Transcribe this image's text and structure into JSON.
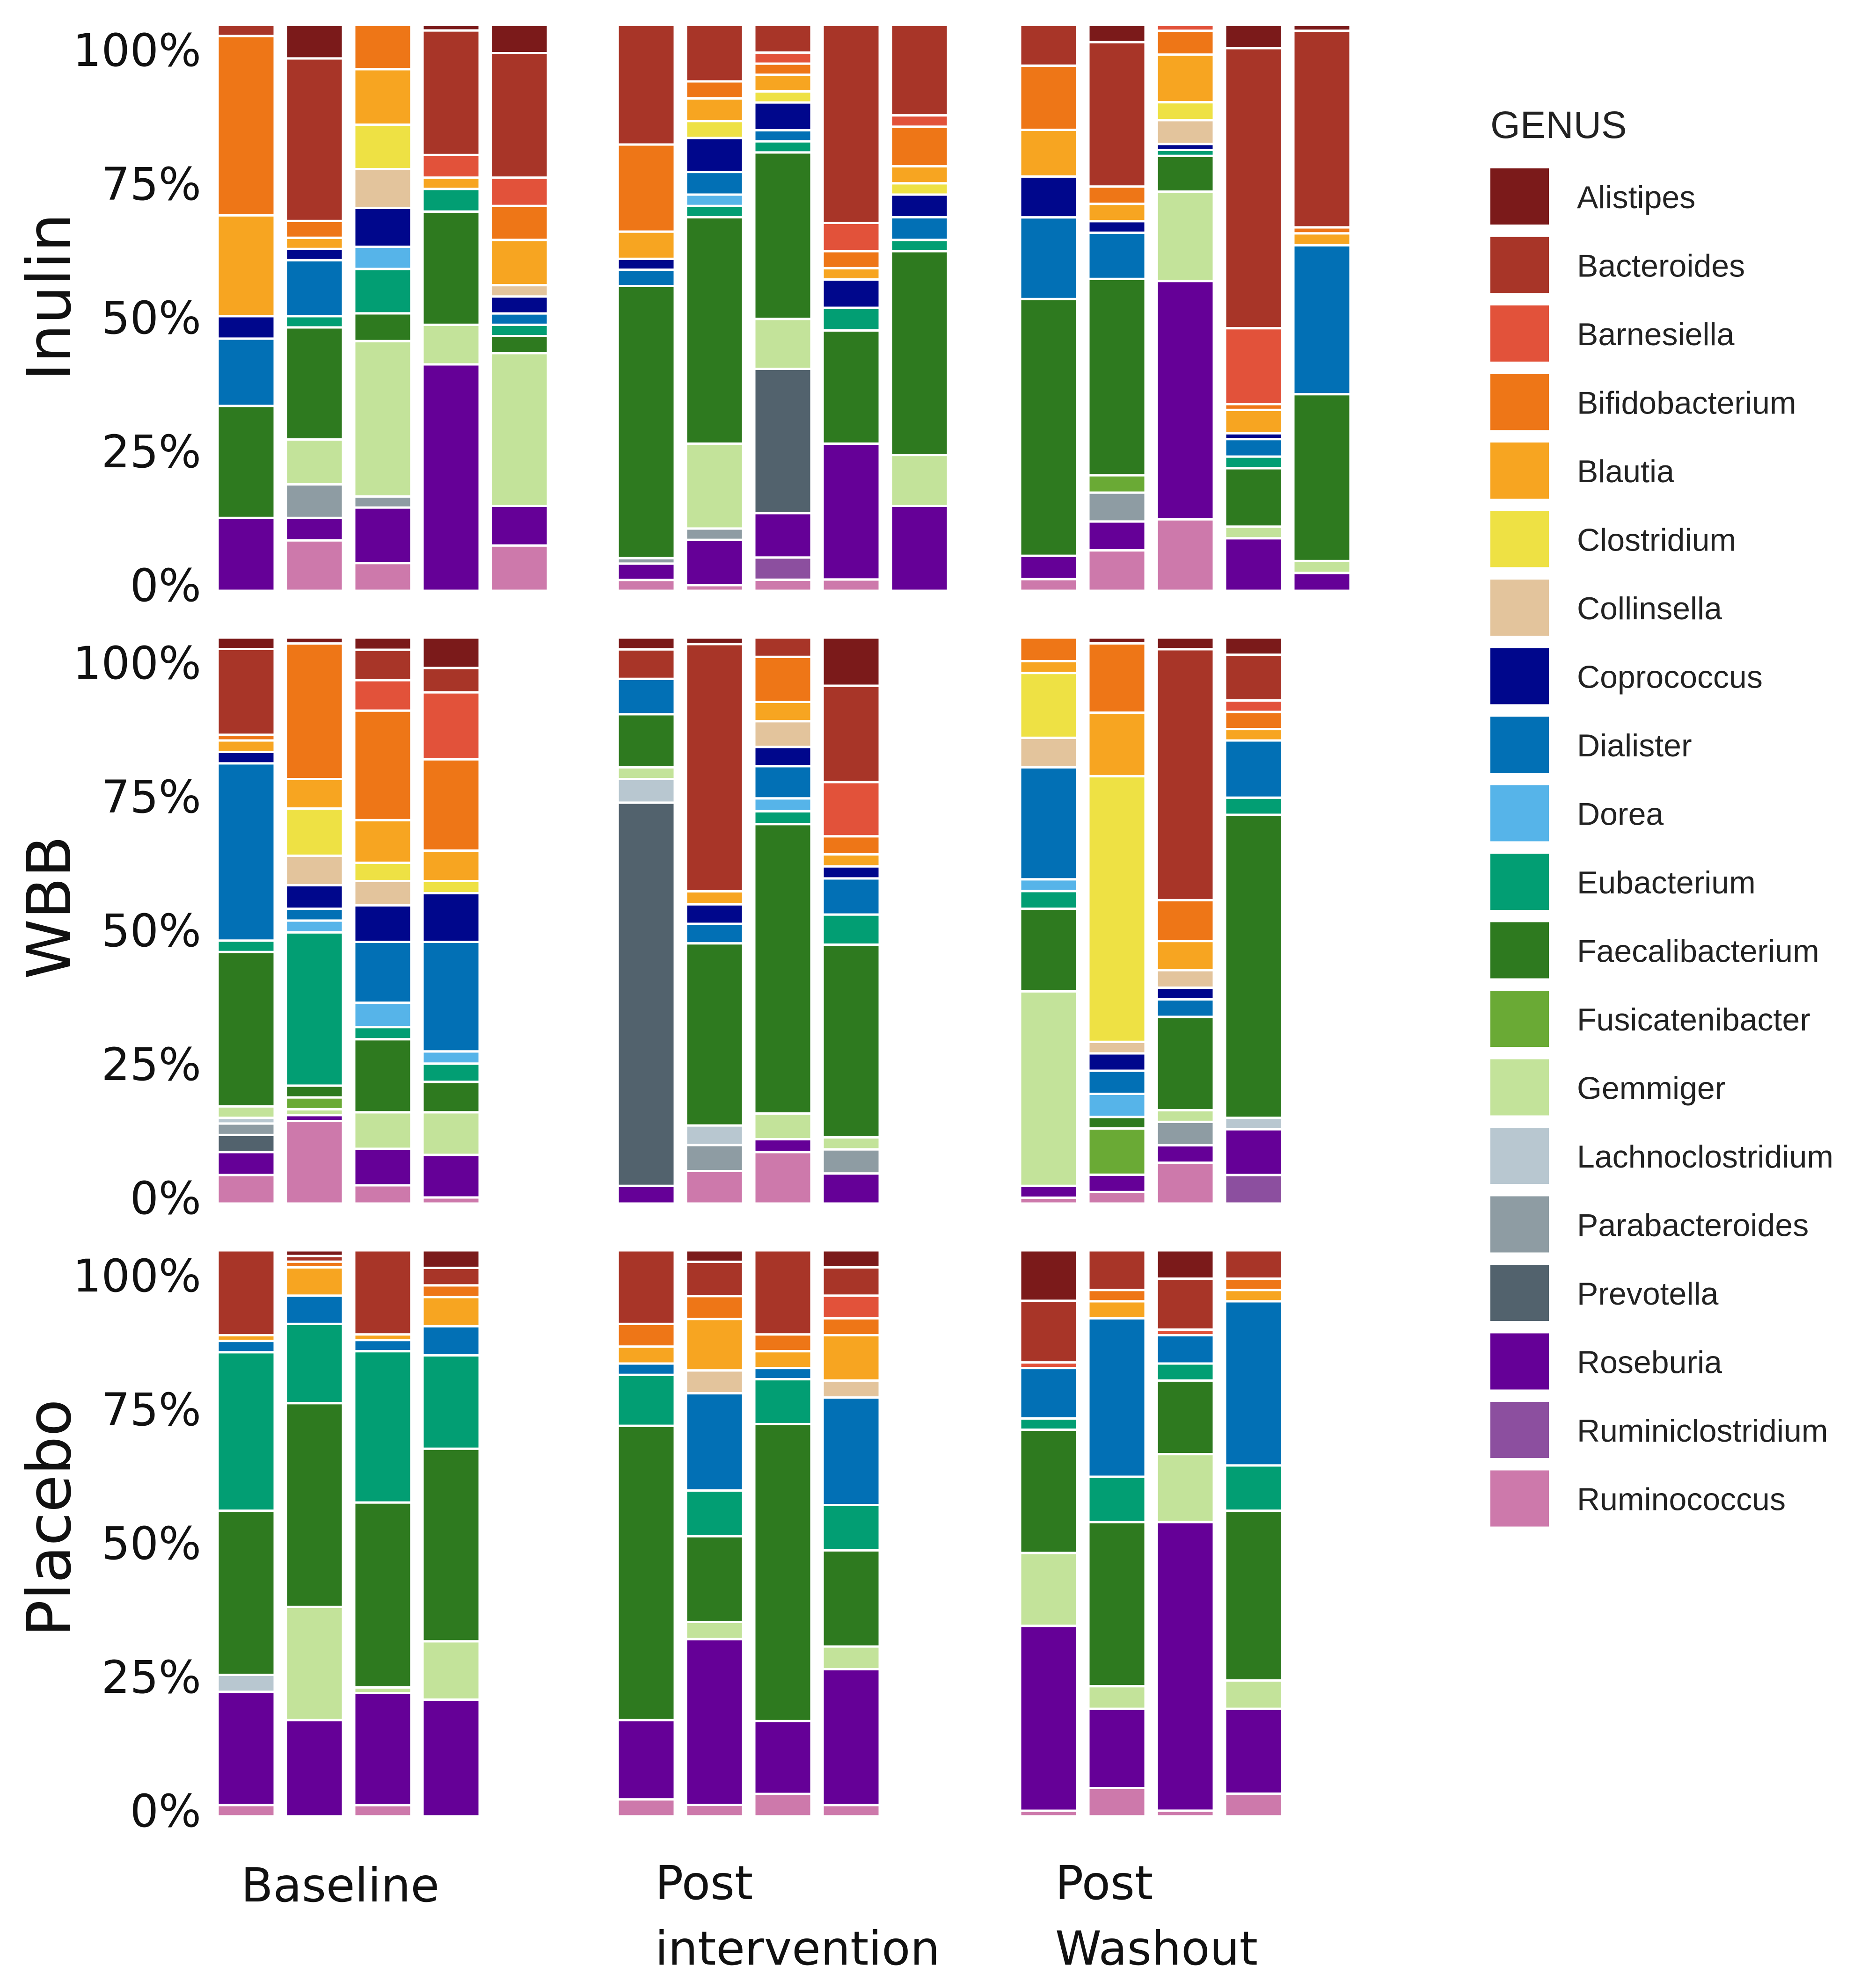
{
  "chart_data": {
    "type": "bar",
    "stacked": true,
    "normalized": true,
    "ylim": [
      0,
      100
    ],
    "yticks": [
      "0%",
      "25%",
      "50%",
      "75%",
      "100%"
    ],
    "groups": [
      "Inulin",
      "WBB",
      "Placebo"
    ],
    "timepoints": [
      "Baseline",
      "Post intervention",
      "Post Washout"
    ],
    "timepoint_lines": [
      [
        "Baseline"
      ],
      [
        "Post",
        "intervention"
      ],
      [
        "Post",
        "Washout"
      ]
    ],
    "legend": {
      "title": "GENUS",
      "position": "right",
      "items": [
        {
          "name": "Alistipes",
          "color": "#7B1A1A"
        },
        {
          "name": "Bacteroides",
          "color": "#A83528"
        },
        {
          "name": "Barnesiella",
          "color": "#E2523A"
        },
        {
          "name": "Bifidobacterium",
          "color": "#EE7617"
        },
        {
          "name": "Blautia",
          "color": "#F7A521"
        },
        {
          "name": "Clostridium",
          "color": "#EEE144"
        },
        {
          "name": "Collinsella",
          "color": "#E3C49C"
        },
        {
          "name": "Coprococcus",
          "color": "#00078C"
        },
        {
          "name": "Dialister",
          "color": "#0270B5"
        },
        {
          "name": "Dorea",
          "color": "#56B4E9"
        },
        {
          "name": "Eubacterium",
          "color": "#029E73"
        },
        {
          "name": "Faecalibacterium",
          "color": "#2E7A1F"
        },
        {
          "name": "Fusicatenibacter",
          "color": "#6AAA35"
        },
        {
          "name": "Gemmiger",
          "color": "#C3E39A"
        },
        {
          "name": "Lachnoclostridium",
          "color": "#B8C7D0"
        },
        {
          "name": "Parabacteroides",
          "color": "#8E9CA3"
        },
        {
          "name": "Prevotella",
          "color": "#52626D"
        },
        {
          "name": "Roseburia",
          "color": "#650097"
        },
        {
          "name": "Ruminiclostridium",
          "color": "#8C4F9F"
        },
        {
          "name": "Ruminococcus",
          "color": "#CD79AB"
        }
      ]
    },
    "panels": [
      {
        "group": "Inulin",
        "timepoint": "Baseline",
        "samples": [
          {
            "Ruminococcus": 0,
            "Roseburia": 13,
            "Faecalibacterium": 20,
            "Dialister": 12,
            "Coprococcus": 4,
            "Blautia": 18,
            "Bifidobacterium": 32,
            "Bacteroides": 2
          },
          {
            "Ruminococcus": 9,
            "Roseburia": 4,
            "Parabacteroides": 6,
            "Gemmiger": 8,
            "Faecalibacterium": 20,
            "Eubacterium": 2,
            "Dialister": 10,
            "Coprococcus": 2,
            "Blautia": 2,
            "Bifidobacterium": 3,
            "Bacteroides": 29,
            "Alistipes": 6
          },
          {
            "Ruminococcus": 5,
            "Roseburia": 10,
            "Parabacteroides": 2,
            "Gemmiger": 28,
            "Faecalibacterium": 5,
            "Eubacterium": 8,
            "Dorea": 4,
            "Coprococcus": 7,
            "Collinsella": 7,
            "Clostridium": 8,
            "Blautia": 10,
            "Bifidobacterium": 8
          },
          {
            "Roseburia": 40,
            "Gemmiger": 7,
            "Faecalibacterium": 20,
            "Eubacterium": 4,
            "Blautia": 2,
            "Barnesiella": 4,
            "Bacteroides": 22,
            "Alistipes": 1
          },
          {
            "Ruminococcus": 8,
            "Roseburia": 7,
            "Gemmiger": 27,
            "Faecalibacterium": 3,
            "Eubacterium": 2,
            "Dialister": 2,
            "Coprococcus": 3,
            "Collinsella": 2,
            "Blautia": 8,
            "Bifidobacterium": 6,
            "Barnesiella": 5,
            "Bacteroides": 22,
            "Alistipes": 5
          }
        ]
      },
      {
        "group": "Inulin",
        "timepoint": "Post intervention",
        "samples": [
          {
            "Ruminococcus": 2,
            "Roseburia": 3,
            "Parabacteroides": 1,
            "Faecalibacterium": 50,
            "Dialister": 3,
            "Coprococcus": 2,
            "Blautia": 5,
            "Bifidobacterium": 16,
            "Bacteroides": 22
          },
          {
            "Ruminococcus": 1,
            "Roseburia": 8,
            "Parabacteroides": 2,
            "Gemmiger": 15,
            "Faecalibacterium": 40,
            "Eubacterium": 2,
            "Dorea": 2,
            "Dialister": 4,
            "Coprococcus": 6,
            "Clostridium": 3,
            "Blautia": 4,
            "Bifidobacterium": 3,
            "Bacteroides": 10
          },
          {
            "Ruminococcus": 2,
            "Ruminiclostridium": 4,
            "Roseburia": 8,
            "Prevotella": 26,
            "Gemmiger": 9,
            "Faecalibacterium": 30,
            "Eubacterium": 2,
            "Dialister": 2,
            "Coprococcus": 5,
            "Clostridium": 2,
            "Blautia": 3,
            "Bifidobacterium": 2,
            "Barnesiella": 2,
            "Bacteroides": 5
          },
          {
            "Ruminococcus": 2,
            "Roseburia": 24,
            "Faecalibacterium": 20,
            "Eubacterium": 4,
            "Coprococcus": 5,
            "Blautia": 2,
            "Bifidobacterium": 3,
            "Barnesiella": 5,
            "Bacteroides": 35
          },
          {
            "Roseburia": 15,
            "Gemmiger": 9,
            "Faecalibacterium": 36,
            "Eubacterium": 2,
            "Dialister": 4,
            "Coprococcus": 4,
            "Clostridium": 2,
            "Blautia": 3,
            "Bifidobacterium": 7,
            "Barnesiella": 2,
            "Bacteroides": 16
          }
        ]
      },
      {
        "group": "Inulin",
        "timepoint": "Post Washout",
        "samples": [
          {
            "Ruminococcus": 2,
            "Roseburia": 4,
            "Faecalibacterium": 44,
            "Dialister": 14,
            "Coprococcus": 7,
            "Blautia": 8,
            "Bifidobacterium": 11,
            "Bacteroides": 7
          },
          {
            "Ruminococcus": 7,
            "Roseburia": 5,
            "Parabacteroides": 5,
            "Fusicatenibacter": 3,
            "Faecalibacterium": 34,
            "Dialister": 8,
            "Coprococcus": 2,
            "Blautia": 3,
            "Bifidobacterium": 3,
            "Bacteroides": 25,
            "Alistipes": 3
          },
          {
            "Ruminococcus": 12,
            "Roseburia": 40,
            "Gemmiger": 15,
            "Faecalibacterium": 6,
            "Eubacterium": 1,
            "Coprococcus": 1,
            "Collinsella": 4,
            "Clostridium": 3,
            "Blautia": 8,
            "Bifidobacterium": 4,
            "Barnesiella": 1
          },
          {
            "Roseburia": 9,
            "Gemmiger": 2,
            "Faecalibacterium": 10,
            "Eubacterium": 2,
            "Dialister": 3,
            "Coprococcus": 1,
            "Blautia": 4,
            "Bifidobacterium": 1,
            "Barnesiella": 13,
            "Bacteroides": 48,
            "Alistipes": 4
          },
          {
            "Roseburia": 3,
            "Gemmiger": 2,
            "Faecalibacterium": 28,
            "Dialister": 25,
            "Blautia": 2,
            "Bifidobacterium": 1,
            "Bacteroides": 33,
            "Alistipes": 1
          }
        ]
      },
      {
        "group": "WBB",
        "timepoint": "Baseline",
        "samples": [
          {
            "Ruminococcus": 5,
            "Roseburia": 4,
            "Prevotella": 3,
            "Parabacteroides": 2,
            "Lachnoclostridium": 1,
            "Gemmiger": 2,
            "Faecalibacterium": 27,
            "Eubacterium": 2,
            "Dialister": 31,
            "Coprococcus": 2,
            "Blautia": 2,
            "Bifidobacterium": 1,
            "Bacteroides": 15,
            "Alistipes": 2
          },
          {
            "Ruminococcus": 14,
            "Roseburia": 1,
            "Gemmiger": 1,
            "Fusicatenibacter": 2,
            "Faecalibacterium": 2,
            "Eubacterium": 26,
            "Dorea": 2,
            "Dialister": 2,
            "Coprococcus": 4,
            "Collinsella": 5,
            "Clostridium": 8,
            "Blautia": 5,
            "Bifidobacterium": 23,
            "Alistipes": 1
          },
          {
            "Ruminococcus": 3,
            "Roseburia": 6,
            "Gemmiger": 6,
            "Faecalibacterium": 12,
            "Eubacterium": 2,
            "Dorea": 4,
            "Dialister": 10,
            "Coprococcus": 6,
            "Collinsella": 4,
            "Clostridium": 3,
            "Blautia": 7,
            "Bifidobacterium": 18,
            "Barnesiella": 5,
            "Bacteroides": 5,
            "Alistipes": 2
          },
          {
            "Ruminococcus": 1,
            "Roseburia": 7,
            "Gemmiger": 7,
            "Faecalibacterium": 5,
            "Eubacterium": 3,
            "Dorea": 2,
            "Dialister": 18,
            "Coprococcus": 8,
            "Clostridium": 2,
            "Blautia": 5,
            "Bifidobacterium": 15,
            "Barnesiella": 11,
            "Bacteroides": 4,
            "Alistipes": 5
          }
        ]
      },
      {
        "group": "WBB",
        "timepoint": "Post intervention",
        "samples": [
          {
            "Roseburia": 3,
            "Prevotella": 65,
            "Lachnoclostridium": 4,
            "Gemmiger": 2,
            "Faecalibacterium": 9,
            "Dialister": 6,
            "Bacteroides": 5,
            "Alistipes": 2
          },
          {
            "Ruminococcus": 5,
            "Parabacteroides": 4,
            "Lachnoclostridium": 3,
            "Faecalibacterium": 28,
            "Dialister": 3,
            "Coprococcus": 3,
            "Blautia": 2,
            "Bacteroides": 38,
            "Alistipes": 1
          },
          {
            "Ruminococcus": 8,
            "Roseburia": 2,
            "Gemmiger": 4,
            "Faecalibacterium": 45,
            "Eubacterium": 2,
            "Dorea": 2,
            "Dialister": 5,
            "Coprococcus": 3,
            "Collinsella": 4,
            "Blautia": 3,
            "Bifidobacterium": 7,
            "Bacteroides": 3
          },
          {
            "Roseburia": 5,
            "Parabacteroides": 4,
            "Gemmiger": 2,
            "Faecalibacterium": 32,
            "Eubacterium": 5,
            "Dialister": 6,
            "Coprococcus": 2,
            "Blautia": 2,
            "Bifidobacterium": 3,
            "Barnesiella": 9,
            "Bacteroides": 16,
            "Alistipes": 8
          }
        ]
      },
      {
        "group": "WBB",
        "timepoint": "Post Washout",
        "samples": [
          {
            "Ruminococcus": 1,
            "Roseburia": 2,
            "Gemmiger": 33,
            "Faecalibacterium": 14,
            "Eubacterium": 3,
            "Dorea": 2,
            "Dialister": 19,
            "Collinsella": 5,
            "Clostridium": 11,
            "Blautia": 2,
            "Bifidobacterium": 4
          },
          {
            "Ruminococcus": 2,
            "Roseburia": 3,
            "Fusicatenibacter": 8,
            "Faecalibacterium": 2,
            "Dorea": 4,
            "Dialister": 4,
            "Coprococcus": 3,
            "Collinsella": 2,
            "Clostridium": 46,
            "Blautia": 11,
            "Bifidobacterium": 12,
            "Alistipes": 1
          },
          {
            "Ruminococcus": 7,
            "Roseburia": 3,
            "Parabacteroides": 4,
            "Gemmiger": 2,
            "Faecalibacterium": 16,
            "Dialister": 3,
            "Coprococcus": 2,
            "Collinsella": 3,
            "Blautia": 5,
            "Bifidobacterium": 7,
            "Bacteroides": 43,
            "Alistipes": 2
          },
          {
            "Ruminiclostridium": 5,
            "Roseburia": 8,
            "Lachnoclostridium": 2,
            "Faecalibacterium": 53,
            "Eubacterium": 3,
            "Dialister": 10,
            "Blautia": 2,
            "Bifidobacterium": 3,
            "Barnesiella": 2,
            "Bacteroides": 8,
            "Alistipes": 3
          }
        ]
      },
      {
        "group": "Placebo",
        "timepoint": "Baseline",
        "samples": [
          {
            "Ruminococcus": 2,
            "Roseburia": 20,
            "Lachnoclostridium": 3,
            "Faecalibacterium": 29,
            "Eubacterium": 28,
            "Dialister": 2,
            "Blautia": 1,
            "Bacteroides": 15
          },
          {
            "Roseburia": 17,
            "Gemmiger": 20,
            "Faecalibacterium": 36,
            "Eubacterium": 14,
            "Dialister": 5,
            "Blautia": 5,
            "Bifidobacterium": 1,
            "Bacteroides": 1,
            "Alistipes": 1
          },
          {
            "Ruminococcus": 2,
            "Roseburia": 20,
            "Gemmiger": 1,
            "Faecalibacterium": 33,
            "Eubacterium": 27,
            "Dialister": 2,
            "Blautia": 1,
            "Bacteroides": 15
          },
          {
            "Roseburia": 20,
            "Gemmiger": 10,
            "Faecalibacterium": 33,
            "Eubacterium": 16,
            "Dialister": 5,
            "Blautia": 5,
            "Bifidobacterium": 2,
            "Bacteroides": 3,
            "Alistipes": 3
          }
        ]
      },
      {
        "group": "Placebo",
        "timepoint": "Post intervention",
        "samples": [
          {
            "Ruminococcus": 3,
            "Roseburia": 14,
            "Faecalibacterium": 52,
            "Eubacterium": 9,
            "Dialister": 2,
            "Blautia": 3,
            "Bifidobacterium": 4,
            "Bacteroides": 13
          },
          {
            "Ruminococcus": 2,
            "Roseburia": 29,
            "Gemmiger": 3,
            "Faecalibacterium": 15,
            "Eubacterium": 8,
            "Dialister": 17,
            "Collinsella": 4,
            "Blautia": 9,
            "Bifidobacterium": 4,
            "Bacteroides": 6,
            "Alistipes": 2
          },
          {
            "Ruminococcus": 4,
            "Roseburia": 13,
            "Faecalibacterium": 53,
            "Eubacterium": 8,
            "Dialister": 2,
            "Blautia": 3,
            "Bifidobacterium": 3,
            "Bacteroides": 15
          },
          {
            "Ruminococcus": 2,
            "Roseburia": 24,
            "Gemmiger": 4,
            "Faecalibacterium": 17,
            "Eubacterium": 8,
            "Dialister": 19,
            "Collinsella": 3,
            "Blautia": 8,
            "Bifidobacterium": 3,
            "Barnesiella": 4,
            "Bacteroides": 5,
            "Alistipes": 3
          }
        ]
      },
      {
        "group": "Placebo",
        "timepoint": "Post Washout",
        "samples": [
          {
            "Ruminococcus": 1,
            "Roseburia": 33,
            "Gemmiger": 13,
            "Faecalibacterium": 22,
            "Eubacterium": 2,
            "Dialister": 9,
            "Barnesiella": 1,
            "Bacteroides": 11,
            "Alistipes": 9
          },
          {
            "Ruminococcus": 5,
            "Roseburia": 14,
            "Gemmiger": 4,
            "Faecalibacterium": 29,
            "Eubacterium": 8,
            "Dialister": 28,
            "Blautia": 3,
            "Bifidobacterium": 2,
            "Bacteroides": 7
          },
          {
            "Ruminococcus": 1,
            "Roseburia": 51,
            "Gemmiger": 12,
            "Faecalibacterium": 13,
            "Eubacterium": 3,
            "Dialister": 5,
            "Barnesiella": 1,
            "Bacteroides": 9,
            "Alistipes": 5
          },
          {
            "Ruminococcus": 4,
            "Roseburia": 15,
            "Gemmiger": 5,
            "Faecalibacterium": 30,
            "Eubacterium": 8,
            "Dialister": 29,
            "Blautia": 2,
            "Bifidobacterium": 2,
            "Bacteroides": 5
          }
        ]
      }
    ]
  }
}
